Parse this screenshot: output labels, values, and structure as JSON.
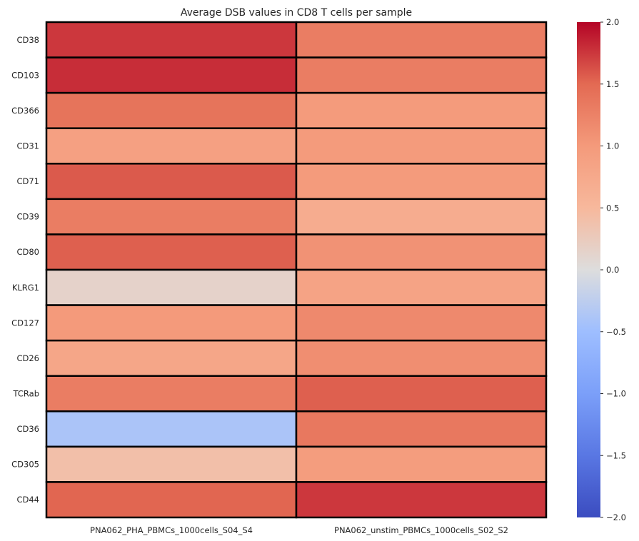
{
  "chart_data": {
    "type": "heatmap",
    "title": "Average DSB values in CD8 T cells per sample",
    "rows": [
      "CD38",
      "CD103",
      "CD366",
      "CD31",
      "CD71",
      "CD39",
      "CD80",
      "KLRG1",
      "CD127",
      "CD26",
      "TCRab",
      "CD36",
      "CD305",
      "CD44"
    ],
    "columns": [
      "PNA062_PHA_PBMCs_1000cells_S04_S4",
      "PNA062_unstim_PBMCs_1000cells_S02_S2"
    ],
    "values": [
      [
        1.75,
        1.3
      ],
      [
        1.8,
        1.3
      ],
      [
        1.4,
        0.98
      ],
      [
        0.9,
        0.98
      ],
      [
        1.58,
        0.98
      ],
      [
        1.3,
        0.7
      ],
      [
        1.55,
        1.08
      ],
      [
        0.15,
        0.85
      ],
      [
        1.0,
        1.18
      ],
      [
        0.8,
        1.12
      ],
      [
        1.3,
        1.55
      ],
      [
        -0.4,
        1.35
      ],
      [
        0.4,
        0.95
      ],
      [
        1.52,
        1.75
      ]
    ],
    "colormap": "coolwarm",
    "vmin": -2.0,
    "vmax": 2.0,
    "colorbar_ticks": [
      "2.0",
      "1.5",
      "1.0",
      "0.5",
      "0.0",
      "−0.5",
      "−1.0",
      "−1.5",
      "−2.0"
    ],
    "colorbar_tick_values": [
      2.0,
      1.5,
      1.0,
      0.5,
      0.0,
      -0.5,
      -1.0,
      -1.5,
      -2.0
    ],
    "cell_border_color": "#000000"
  }
}
